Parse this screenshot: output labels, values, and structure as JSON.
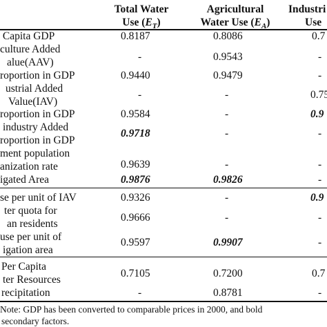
{
  "header": {
    "col1": {
      "line1": "Total Water",
      "line2": "Use (",
      "sym": "E",
      "sub": "T",
      "close": ")"
    },
    "col2": {
      "line1": "Agricultural",
      "line2": "Water Use (",
      "sym": "E",
      "sub": "A",
      "close": ")"
    },
    "col3": {
      "line1": "Industri",
      "line2": "Use"
    }
  },
  "rows": [
    {
      "label": "Capita GDP",
      "c1": "0.8187",
      "c2": "0.8086",
      "c3": "0.7"
    },
    {
      "label": "culture Added",
      "c1": "",
      "c2": "",
      "c3": ""
    },
    {
      "label": "alue(AAV)",
      "c1": "-",
      "c2": "0.9543",
      "c3": "-"
    },
    {
      "label": "roportion in GDP",
      "c1": "0.9440",
      "c2": "0.9479",
      "c3": "-"
    },
    {
      "label": "ustrial Added",
      "c1": "",
      "c2": "",
      "c3": ""
    },
    {
      "label": "Value(IAV)",
      "c1": "-",
      "c2": "-",
      "c3": "0.75"
    },
    {
      "label": "roportion in GDP",
      "c1": "0.9584",
      "c2": "-",
      "c3": "0.9"
    },
    {
      "label": "industry Added",
      "c1": "",
      "c2": "",
      "c3": ""
    },
    {
      "label": "roportion in GDP",
      "c1": "0.9718",
      "c2": "-",
      "c3": "-"
    },
    {
      "label": "ment population",
      "c1": "",
      "c2": "",
      "c3": ""
    },
    {
      "label": "anization rate",
      "c1": "0.9639",
      "c2": "-",
      "c3": "-"
    },
    {
      "label": "igated Area",
      "c1": "0.9876",
      "c2": "0.9826",
      "c3": "-"
    },
    {
      "label": "se per unit of IAV",
      "c1": "0.9326",
      "c2": "-",
      "c3": "0.9"
    },
    {
      "label": "ter quota for",
      "c1": "",
      "c2": "",
      "c3": ""
    },
    {
      "label": "an residents",
      "c1": "0.9666",
      "c2": "-",
      "c3": "-"
    },
    {
      "label": "use per unit of",
      "c1": "",
      "c2": "",
      "c3": ""
    },
    {
      "label": "igation area",
      "c1": "0.9597",
      "c2": "0.9907",
      "c3": "-"
    },
    {
      "label": "Per Capita",
      "c1": "0.7105",
      "c2": "0.7200",
      "c3": "0.7"
    },
    {
      "label": "ter Resources",
      "c1": "",
      "c2": "",
      "c3": ""
    },
    {
      "label": "recipitation",
      "c1": "-",
      "c2": "0.8781",
      "c3": "-"
    }
  ],
  "note": {
    "line1": "Note:  GDP has been converted to comparable prices in 2000, and bold",
    "line2": "secondary factors."
  }
}
